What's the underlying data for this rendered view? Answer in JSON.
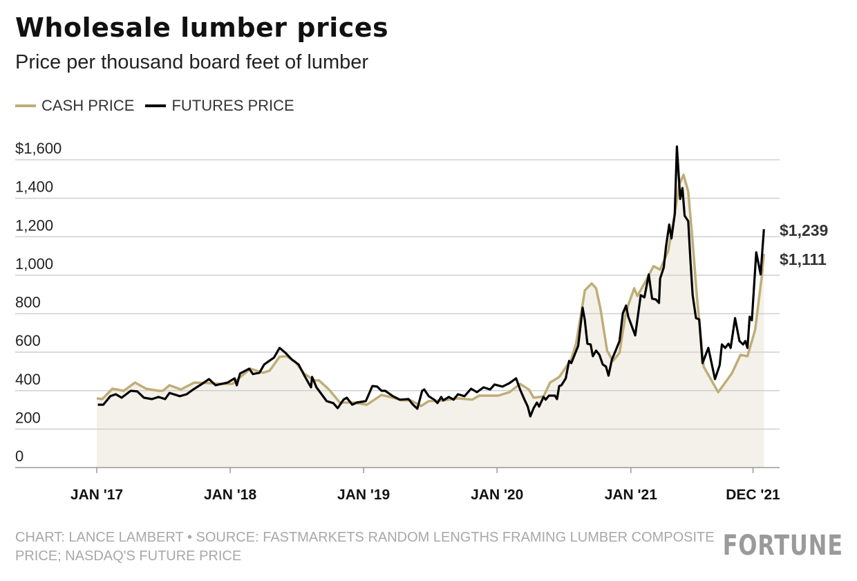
{
  "chart_data": {
    "type": "line",
    "title": "Wholesale lumber prices",
    "subtitle": "Price per thousand board feet of lumber",
    "xlabel": "",
    "ylabel": "",
    "ylim": [
      0,
      1600
    ],
    "yticks": [
      0,
      200,
      400,
      600,
      800,
      1000,
      1200,
      1400,
      1600
    ],
    "ytick_labels": [
      "0",
      "200",
      "400",
      "600",
      "800",
      "1,000",
      "1,200",
      "1,400",
      "$1,600"
    ],
    "xticks": [
      {
        "date": "2017-01-01",
        "label": "JAN '17"
      },
      {
        "date": "2018-01-01",
        "label": "JAN '18"
      },
      {
        "date": "2019-01-01",
        "label": "JAN '19"
      },
      {
        "date": "2020-01-01",
        "label": "JAN '20"
      },
      {
        "date": "2021-01-01",
        "label": "JAN '21"
      },
      {
        "date": "2021-12-01",
        "label": "DEC '21"
      }
    ],
    "grid": true,
    "legend_position": "top-left",
    "series": [
      {
        "name": "CASH PRICE",
        "color": "#bfad78",
        "fill": "#f4f1ea",
        "end_label": "$1,111",
        "points": [
          [
            "2017-01-01",
            360
          ],
          [
            "2017-01-16",
            356
          ],
          [
            "2017-02-13",
            410
          ],
          [
            "2017-03-16",
            399
          ],
          [
            "2017-04-16",
            442
          ],
          [
            "2017-05-16",
            410
          ],
          [
            "2017-06-19",
            399
          ],
          [
            "2017-07-01",
            399
          ],
          [
            "2017-07-19",
            428
          ],
          [
            "2017-08-19",
            406
          ],
          [
            "2017-09-25",
            442
          ],
          [
            "2017-11-01",
            439
          ],
          [
            "2017-12-10",
            435
          ],
          [
            "2018-01-07",
            435
          ],
          [
            "2018-02-25",
            514
          ],
          [
            "2018-04-01",
            493
          ],
          [
            "2018-04-19",
            504
          ],
          [
            "2018-05-16",
            576
          ],
          [
            "2018-06-04",
            579
          ],
          [
            "2018-06-28",
            550
          ],
          [
            "2018-07-22",
            489
          ],
          [
            "2018-08-19",
            453
          ],
          [
            "2018-09-01",
            453
          ],
          [
            "2018-09-28",
            406
          ],
          [
            "2018-10-28",
            338
          ],
          [
            "2018-12-04",
            338
          ],
          [
            "2019-01-10",
            327
          ],
          [
            "2019-02-19",
            378
          ],
          [
            "2019-03-22",
            363
          ],
          [
            "2019-04-16",
            349
          ],
          [
            "2019-05-10",
            349
          ],
          [
            "2019-06-07",
            320
          ],
          [
            "2019-06-28",
            345
          ],
          [
            "2019-08-07",
            349
          ],
          [
            "2019-09-16",
            360
          ],
          [
            "2019-10-25",
            353
          ],
          [
            "2019-11-13",
            374
          ],
          [
            "2020-01-04",
            374
          ],
          [
            "2020-02-04",
            392
          ],
          [
            "2020-03-04",
            435
          ],
          [
            "2020-03-28",
            406
          ],
          [
            "2020-04-10",
            363
          ],
          [
            "2020-05-07",
            370
          ],
          [
            "2020-05-25",
            442
          ],
          [
            "2020-06-19",
            471
          ],
          [
            "2020-07-07",
            520
          ],
          [
            "2020-07-22",
            565
          ],
          [
            "2020-08-04",
            644
          ],
          [
            "2020-08-22",
            849
          ],
          [
            "2020-08-28",
            921
          ],
          [
            "2020-09-16",
            957
          ],
          [
            "2020-09-28",
            932
          ],
          [
            "2020-10-10",
            824
          ],
          [
            "2020-10-28",
            608
          ],
          [
            "2020-11-13",
            554
          ],
          [
            "2020-12-01",
            597
          ],
          [
            "2020-12-19",
            813
          ],
          [
            "2021-01-10",
            932
          ],
          [
            "2021-01-19",
            892
          ],
          [
            "2021-02-10",
            968
          ],
          [
            "2021-03-04",
            1047
          ],
          [
            "2021-03-22",
            1029
          ],
          [
            "2021-04-13",
            1126
          ],
          [
            "2021-05-01",
            1317
          ],
          [
            "2021-05-13",
            1471
          ],
          [
            "2021-05-25",
            1522
          ],
          [
            "2021-06-07",
            1435
          ],
          [
            "2021-06-19",
            1173
          ],
          [
            "2021-07-01",
            885
          ],
          [
            "2021-07-19",
            525
          ],
          [
            "2021-08-28",
            392
          ],
          [
            "2021-10-04",
            489
          ],
          [
            "2021-10-28",
            586
          ],
          [
            "2021-11-16",
            579
          ],
          [
            "2021-12-07",
            716
          ],
          [
            "2021-12-25",
            993
          ],
          [
            "2021-12-31",
            1111
          ]
        ]
      },
      {
        "name": "FUTURES PRICE",
        "color": "#000000",
        "end_label": "$1,239",
        "points": [
          [
            "2017-01-04",
            327
          ],
          [
            "2017-01-19",
            327
          ],
          [
            "2017-02-07",
            371
          ],
          [
            "2017-02-22",
            381
          ],
          [
            "2017-03-10",
            363
          ],
          [
            "2017-04-04",
            399
          ],
          [
            "2017-04-22",
            396
          ],
          [
            "2017-05-10",
            363
          ],
          [
            "2017-06-01",
            356
          ],
          [
            "2017-06-19",
            367
          ],
          [
            "2017-07-07",
            356
          ],
          [
            "2017-07-19",
            388
          ],
          [
            "2017-08-16",
            371
          ],
          [
            "2017-09-04",
            381
          ],
          [
            "2017-09-22",
            406
          ],
          [
            "2017-10-16",
            435
          ],
          [
            "2017-11-04",
            460
          ],
          [
            "2017-11-22",
            428
          ],
          [
            "2017-12-25",
            442
          ],
          [
            "2018-01-13",
            464
          ],
          [
            "2018-01-19",
            428
          ],
          [
            "2018-01-28",
            489
          ],
          [
            "2018-02-22",
            514
          ],
          [
            "2018-03-04",
            486
          ],
          [
            "2018-03-22",
            493
          ],
          [
            "2018-04-04",
            536
          ],
          [
            "2018-05-01",
            572
          ],
          [
            "2018-05-16",
            622
          ],
          [
            "2018-06-01",
            597
          ],
          [
            "2018-06-19",
            561
          ],
          [
            "2018-07-07",
            536
          ],
          [
            "2018-07-25",
            471
          ],
          [
            "2018-08-10",
            417
          ],
          [
            "2018-08-13",
            471
          ],
          [
            "2018-08-25",
            417
          ],
          [
            "2018-09-22",
            345
          ],
          [
            "2018-10-10",
            335
          ],
          [
            "2018-10-22",
            309
          ],
          [
            "2018-11-07",
            353
          ],
          [
            "2018-11-16",
            363
          ],
          [
            "2018-12-01",
            327
          ],
          [
            "2018-12-13",
            338
          ],
          [
            "2019-01-07",
            345
          ],
          [
            "2019-01-25",
            424
          ],
          [
            "2019-02-07",
            421
          ],
          [
            "2019-02-19",
            399
          ],
          [
            "2019-03-01",
            399
          ],
          [
            "2019-03-22",
            371
          ],
          [
            "2019-04-10",
            353
          ],
          [
            "2019-05-04",
            356
          ],
          [
            "2019-05-16",
            327
          ],
          [
            "2019-05-28",
            306
          ],
          [
            "2019-06-10",
            399
          ],
          [
            "2019-06-16",
            406
          ],
          [
            "2019-06-28",
            371
          ],
          [
            "2019-07-13",
            353
          ],
          [
            "2019-07-22",
            335
          ],
          [
            "2019-08-01",
            367
          ],
          [
            "2019-08-07",
            349
          ],
          [
            "2019-08-22",
            367
          ],
          [
            "2019-09-04",
            353
          ],
          [
            "2019-09-16",
            381
          ],
          [
            "2019-10-04",
            371
          ],
          [
            "2019-10-22",
            410
          ],
          [
            "2019-11-07",
            392
          ],
          [
            "2019-11-25",
            417
          ],
          [
            "2019-12-13",
            406
          ],
          [
            "2019-12-25",
            432
          ],
          [
            "2020-01-16",
            421
          ],
          [
            "2020-02-04",
            439
          ],
          [
            "2020-02-22",
            464
          ],
          [
            "2020-03-04",
            406
          ],
          [
            "2020-03-16",
            353
          ],
          [
            "2020-03-25",
            317
          ],
          [
            "2020-04-01",
            266
          ],
          [
            "2020-04-10",
            309
          ],
          [
            "2020-04-19",
            338
          ],
          [
            "2020-04-25",
            317
          ],
          [
            "2020-05-07",
            367
          ],
          [
            "2020-05-13",
            353
          ],
          [
            "2020-05-22",
            374
          ],
          [
            "2020-06-07",
            374
          ],
          [
            "2020-06-13",
            356
          ],
          [
            "2020-06-19",
            424
          ],
          [
            "2020-06-25",
            428
          ],
          [
            "2020-07-07",
            464
          ],
          [
            "2020-07-16",
            554
          ],
          [
            "2020-07-22",
            543
          ],
          [
            "2020-08-10",
            633
          ],
          [
            "2020-08-22",
            831
          ],
          [
            "2020-08-28",
            766
          ],
          [
            "2020-09-04",
            644
          ],
          [
            "2020-09-13",
            640
          ],
          [
            "2020-09-19",
            579
          ],
          [
            "2020-09-28",
            608
          ],
          [
            "2020-10-07",
            586
          ],
          [
            "2020-10-16",
            536
          ],
          [
            "2020-10-25",
            525
          ],
          [
            "2020-11-01",
            478
          ],
          [
            "2020-11-10",
            561
          ],
          [
            "2020-11-22",
            615
          ],
          [
            "2020-12-01",
            658
          ],
          [
            "2020-12-10",
            802
          ],
          [
            "2020-12-19",
            842
          ],
          [
            "2020-12-25",
            784
          ],
          [
            "2021-01-13",
            687
          ],
          [
            "2021-01-28",
            896
          ],
          [
            "2021-02-07",
            885
          ],
          [
            "2021-02-19",
            1004
          ],
          [
            "2021-02-28",
            878
          ],
          [
            "2021-03-10",
            874
          ],
          [
            "2021-03-19",
            856
          ],
          [
            "2021-03-22",
            982
          ],
          [
            "2021-04-01",
            1040
          ],
          [
            "2021-04-07",
            1147
          ],
          [
            "2021-04-16",
            1263
          ],
          [
            "2021-04-22",
            1191
          ],
          [
            "2021-05-01",
            1317
          ],
          [
            "2021-05-07",
            1669
          ],
          [
            "2021-05-16",
            1396
          ],
          [
            "2021-05-22",
            1453
          ],
          [
            "2021-05-28",
            1309
          ],
          [
            "2021-06-07",
            1281
          ],
          [
            "2021-06-13",
            1076
          ],
          [
            "2021-06-19",
            896
          ],
          [
            "2021-06-28",
            777
          ],
          [
            "2021-07-07",
            770
          ],
          [
            "2021-07-16",
            543
          ],
          [
            "2021-08-01",
            622
          ],
          [
            "2021-08-19",
            460
          ],
          [
            "2021-09-01",
            532
          ],
          [
            "2021-09-07",
            640
          ],
          [
            "2021-09-16",
            622
          ],
          [
            "2021-09-25",
            644
          ],
          [
            "2021-10-01",
            622
          ],
          [
            "2021-10-13",
            777
          ],
          [
            "2021-10-25",
            658
          ],
          [
            "2021-11-04",
            640
          ],
          [
            "2021-11-10",
            658
          ],
          [
            "2021-11-16",
            622
          ],
          [
            "2021-11-22",
            784
          ],
          [
            "2021-11-28",
            766
          ],
          [
            "2021-12-10",
            1119
          ],
          [
            "2021-12-22",
            1004
          ],
          [
            "2021-12-31",
            1239
          ]
        ]
      }
    ]
  },
  "footer": {
    "credit": "CHART: LANCE LAMBERT • SOURCE: FASTMARKETS RANDOM LENGTHS FRAMING LUMBER COMPOSITE PRICE; NASDAQ'S FUTURE PRICE",
    "logo": "FORTUNE"
  }
}
